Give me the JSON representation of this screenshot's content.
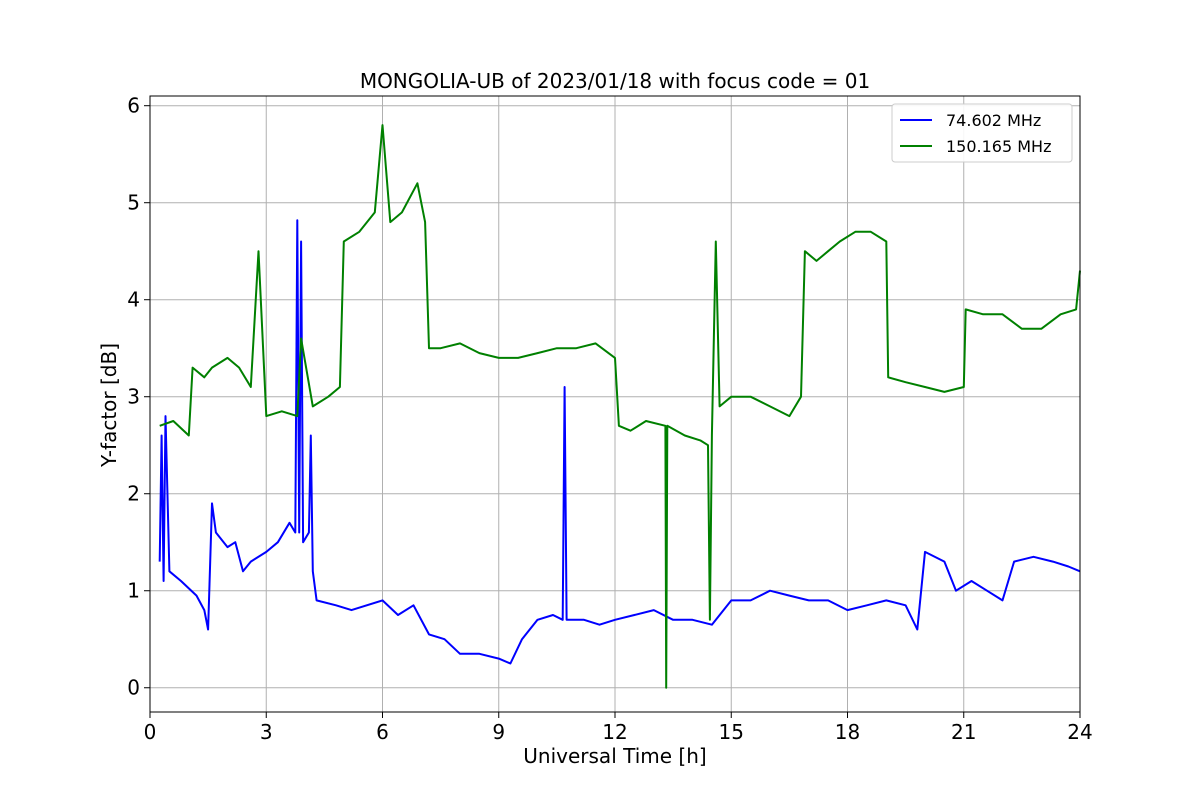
{
  "chart_data": {
    "type": "line",
    "title": "MONGOLIA-UB of 2023/01/18 with focus code = 01",
    "xlabel": "Universal Time [h]",
    "ylabel": "Y-factor [dB]",
    "xlim": [
      0,
      24
    ],
    "ylim": [
      -0.25,
      6.1
    ],
    "xticks": [
      "0",
      "3",
      "6",
      "9",
      "12",
      "15",
      "18",
      "21",
      "24"
    ],
    "yticks": [
      "0",
      "1",
      "2",
      "3",
      "4",
      "5",
      "6"
    ],
    "grid": true,
    "legend_position": "top-right",
    "series": [
      {
        "name": " 74.602 MHz",
        "color": "#0000ff",
        "points": [
          [
            0.25,
            1.3
          ],
          [
            0.3,
            2.6
          ],
          [
            0.35,
            1.1
          ],
          [
            0.4,
            2.8
          ],
          [
            0.5,
            1.2
          ],
          [
            0.8,
            1.1
          ],
          [
            1.2,
            0.95
          ],
          [
            1.4,
            0.8
          ],
          [
            1.5,
            0.6
          ],
          [
            1.6,
            1.9
          ],
          [
            1.7,
            1.6
          ],
          [
            2.0,
            1.45
          ],
          [
            2.2,
            1.5
          ],
          [
            2.4,
            1.2
          ],
          [
            2.6,
            1.3
          ],
          [
            3.0,
            1.4
          ],
          [
            3.3,
            1.5
          ],
          [
            3.6,
            1.7
          ],
          [
            3.75,
            1.6
          ],
          [
            3.8,
            4.82
          ],
          [
            3.85,
            1.6
          ],
          [
            3.9,
            4.6
          ],
          [
            3.95,
            1.5
          ],
          [
            4.1,
            1.6
          ],
          [
            4.15,
            2.6
          ],
          [
            4.2,
            1.2
          ],
          [
            4.3,
            0.9
          ],
          [
            4.8,
            0.85
          ],
          [
            5.2,
            0.8
          ],
          [
            6.0,
            0.9
          ],
          [
            6.4,
            0.75
          ],
          [
            6.8,
            0.85
          ],
          [
            7.2,
            0.55
          ],
          [
            7.6,
            0.5
          ],
          [
            8.0,
            0.35
          ],
          [
            8.5,
            0.35
          ],
          [
            9.0,
            0.3
          ],
          [
            9.3,
            0.25
          ],
          [
            9.6,
            0.5
          ],
          [
            10.0,
            0.7
          ],
          [
            10.4,
            0.75
          ],
          [
            10.65,
            0.7
          ],
          [
            10.7,
            3.1
          ],
          [
            10.75,
            0.7
          ],
          [
            11.2,
            0.7
          ],
          [
            11.6,
            0.65
          ],
          [
            12.0,
            0.7
          ],
          [
            12.5,
            0.75
          ],
          [
            13.0,
            0.8
          ],
          [
            13.5,
            0.7
          ],
          [
            14.0,
            0.7
          ],
          [
            14.5,
            0.65
          ],
          [
            15.0,
            0.9
          ],
          [
            15.5,
            0.9
          ],
          [
            16.0,
            1.0
          ],
          [
            16.5,
            0.95
          ],
          [
            17.0,
            0.9
          ],
          [
            17.5,
            0.9
          ],
          [
            18.0,
            0.8
          ],
          [
            18.5,
            0.85
          ],
          [
            19.0,
            0.9
          ],
          [
            19.5,
            0.85
          ],
          [
            19.8,
            0.6
          ],
          [
            20.0,
            1.4
          ],
          [
            20.5,
            1.3
          ],
          [
            20.8,
            1.0
          ],
          [
            21.2,
            1.1
          ],
          [
            21.6,
            1.0
          ],
          [
            22.0,
            0.9
          ],
          [
            22.3,
            1.3
          ],
          [
            22.8,
            1.35
          ],
          [
            23.3,
            1.3
          ],
          [
            23.7,
            1.25
          ],
          [
            24.0,
            1.2
          ]
        ]
      },
      {
        "name": "150.165 MHz",
        "color": "#008000",
        "points": [
          [
            0.25,
            2.7
          ],
          [
            0.6,
            2.75
          ],
          [
            1.0,
            2.6
          ],
          [
            1.1,
            3.3
          ],
          [
            1.4,
            3.2
          ],
          [
            1.6,
            3.3
          ],
          [
            2.0,
            3.4
          ],
          [
            2.3,
            3.3
          ],
          [
            2.6,
            3.1
          ],
          [
            2.8,
            4.5
          ],
          [
            3.0,
            2.8
          ],
          [
            3.4,
            2.85
          ],
          [
            3.8,
            2.8
          ],
          [
            3.9,
            3.6
          ],
          [
            4.2,
            2.9
          ],
          [
            4.6,
            3.0
          ],
          [
            4.9,
            3.1
          ],
          [
            5.0,
            4.6
          ],
          [
            5.4,
            4.7
          ],
          [
            5.8,
            4.9
          ],
          [
            6.0,
            5.8
          ],
          [
            6.2,
            4.8
          ],
          [
            6.5,
            4.9
          ],
          [
            6.9,
            5.2
          ],
          [
            7.1,
            4.8
          ],
          [
            7.2,
            3.5
          ],
          [
            7.5,
            3.5
          ],
          [
            8.0,
            3.55
          ],
          [
            8.5,
            3.45
          ],
          [
            9.0,
            3.4
          ],
          [
            9.5,
            3.4
          ],
          [
            10.0,
            3.45
          ],
          [
            10.5,
            3.5
          ],
          [
            11.0,
            3.5
          ],
          [
            11.5,
            3.55
          ],
          [
            12.0,
            3.4
          ],
          [
            12.1,
            2.7
          ],
          [
            12.4,
            2.65
          ],
          [
            12.8,
            2.75
          ],
          [
            13.3,
            2.7
          ],
          [
            13.32,
            0.0
          ],
          [
            13.35,
            2.7
          ],
          [
            13.8,
            2.6
          ],
          [
            14.2,
            2.55
          ],
          [
            14.4,
            2.5
          ],
          [
            14.45,
            0.7
          ],
          [
            14.5,
            2.6
          ],
          [
            14.6,
            4.6
          ],
          [
            14.7,
            2.9
          ],
          [
            15.0,
            3.0
          ],
          [
            15.5,
            3.0
          ],
          [
            16.0,
            2.9
          ],
          [
            16.5,
            2.8
          ],
          [
            16.8,
            3.0
          ],
          [
            16.9,
            4.5
          ],
          [
            17.2,
            4.4
          ],
          [
            17.5,
            4.5
          ],
          [
            17.8,
            4.6
          ],
          [
            18.2,
            4.7
          ],
          [
            18.6,
            4.7
          ],
          [
            19.0,
            4.6
          ],
          [
            19.05,
            3.2
          ],
          [
            19.5,
            3.15
          ],
          [
            20.0,
            3.1
          ],
          [
            20.5,
            3.05
          ],
          [
            21.0,
            3.1
          ],
          [
            21.05,
            3.9
          ],
          [
            21.5,
            3.85
          ],
          [
            22.0,
            3.85
          ],
          [
            22.5,
            3.7
          ],
          [
            23.0,
            3.7
          ],
          [
            23.5,
            3.85
          ],
          [
            23.9,
            3.9
          ],
          [
            24.0,
            4.3
          ]
        ]
      }
    ]
  }
}
